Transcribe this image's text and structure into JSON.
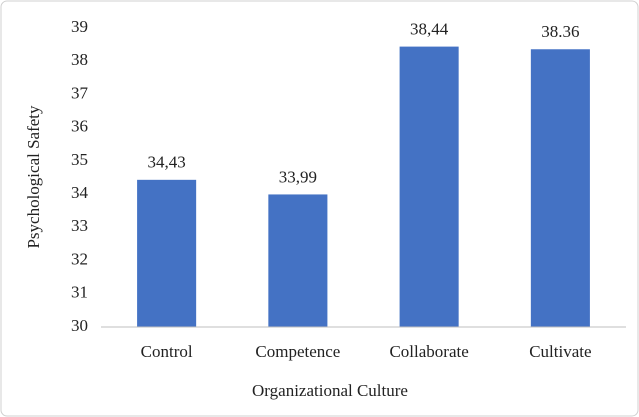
{
  "chart_data": {
    "type": "bar",
    "x_label": "Organizational Culture",
    "y_label": "Psychological Safety",
    "categories": [
      "Control",
      "Competence",
      "Collaborate",
      "Cultivate"
    ],
    "values": [
      34.43,
      33.99,
      38.44,
      38.36
    ],
    "value_labels": [
      "34,43",
      "33,99",
      "38,44",
      "38.36"
    ],
    "color": "#4472c4",
    "ylim": [
      30,
      39
    ],
    "yticks": [
      30,
      31,
      32,
      33,
      34,
      35,
      36,
      37,
      38,
      39
    ],
    "grid": false
  }
}
